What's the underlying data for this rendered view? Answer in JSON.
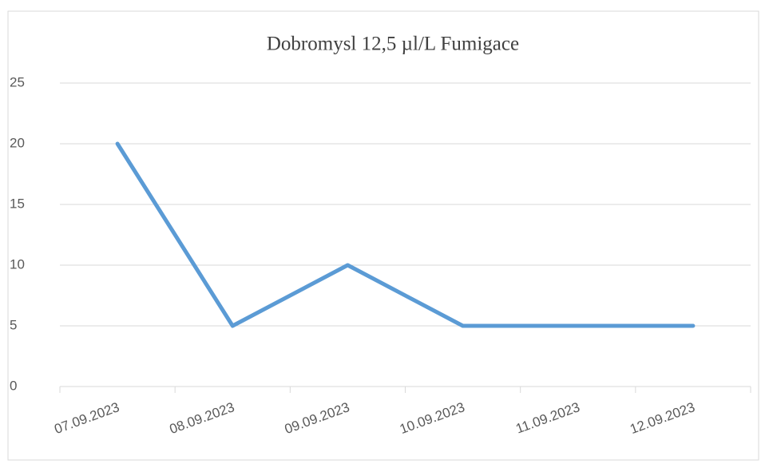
{
  "chart_data": {
    "type": "line",
    "title": "Dobromysl  12,5 µl/L Fumigace",
    "categories": [
      "07.09.2023",
      "08.09.2023",
      "09.09.2023",
      "10.09.2023",
      "11.09.2023",
      "12.09.2023"
    ],
    "series": [
      {
        "name": "Dobromysl 12,5 µl/L",
        "color": "#5b9bd5",
        "values": [
          20,
          5,
          10,
          5,
          5,
          5
        ]
      }
    ],
    "ylim": [
      0,
      25
    ],
    "yticks": [
      0,
      5,
      10,
      15,
      20,
      25
    ],
    "grid": true
  }
}
